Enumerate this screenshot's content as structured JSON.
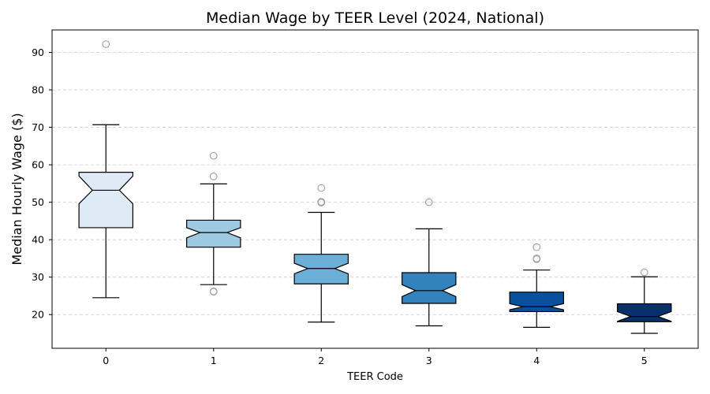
{
  "chart_data": {
    "type": "box",
    "title": "Median Wage by TEER Level (2024, National)",
    "xlabel": "TEER Code",
    "ylabel": "Median Hourly Wage ($)",
    "ylim": [
      11,
      96
    ],
    "yticks": [
      20,
      30,
      40,
      50,
      60,
      70,
      80,
      90
    ],
    "grid": "y, dashed",
    "notched": true,
    "categories": [
      "0",
      "1",
      "2",
      "3",
      "4",
      "5"
    ],
    "colors": [
      "#deebf7",
      "#9ecae1",
      "#6baed6",
      "#3182bd",
      "#08519c",
      "#08306b"
    ],
    "boxes": [
      {
        "teer": "0",
        "whisker_low": 24.5,
        "q1": 43.2,
        "median": 53.2,
        "q3": 58.0,
        "whisker_high": 70.7,
        "notch_low": 49.6,
        "notch_high": 57.0,
        "outliers": [
          92.2
        ]
      },
      {
        "teer": "1",
        "whisker_low": 28.0,
        "q1": 38.0,
        "median": 41.9,
        "q3": 45.2,
        "whisker_high": 54.9,
        "notch_low": 40.5,
        "notch_high": 43.2,
        "outliers": [
          62.4,
          56.9,
          26.2,
          26.1
        ]
      },
      {
        "teer": "2",
        "whisker_low": 18.0,
        "q1": 28.2,
        "median": 32.3,
        "q3": 36.1,
        "whisker_high": 47.3,
        "notch_low": 30.9,
        "notch_high": 33.7,
        "outliers": [
          53.8,
          50.1,
          49.9
        ]
      },
      {
        "teer": "3",
        "whisker_low": 17.0,
        "q1": 23.0,
        "median": 26.4,
        "q3": 31.2,
        "whisker_high": 42.9,
        "notch_low": 24.8,
        "notch_high": 28.0,
        "outliers": [
          50.0
        ]
      },
      {
        "teer": "4",
        "whisker_low": 16.6,
        "q1": 20.8,
        "median": 22.1,
        "q3": 26.0,
        "whisker_high": 31.9,
        "notch_low": 21.3,
        "notch_high": 22.9,
        "outliers": [
          38.0,
          35.0,
          34.8
        ]
      },
      {
        "teer": "5",
        "whisker_low": 15.0,
        "q1": 18.1,
        "median": 19.5,
        "q3": 22.9,
        "whisker_high": 30.1,
        "notch_low": 18.2,
        "notch_high": 20.8,
        "outliers": [
          31.3
        ]
      }
    ]
  }
}
